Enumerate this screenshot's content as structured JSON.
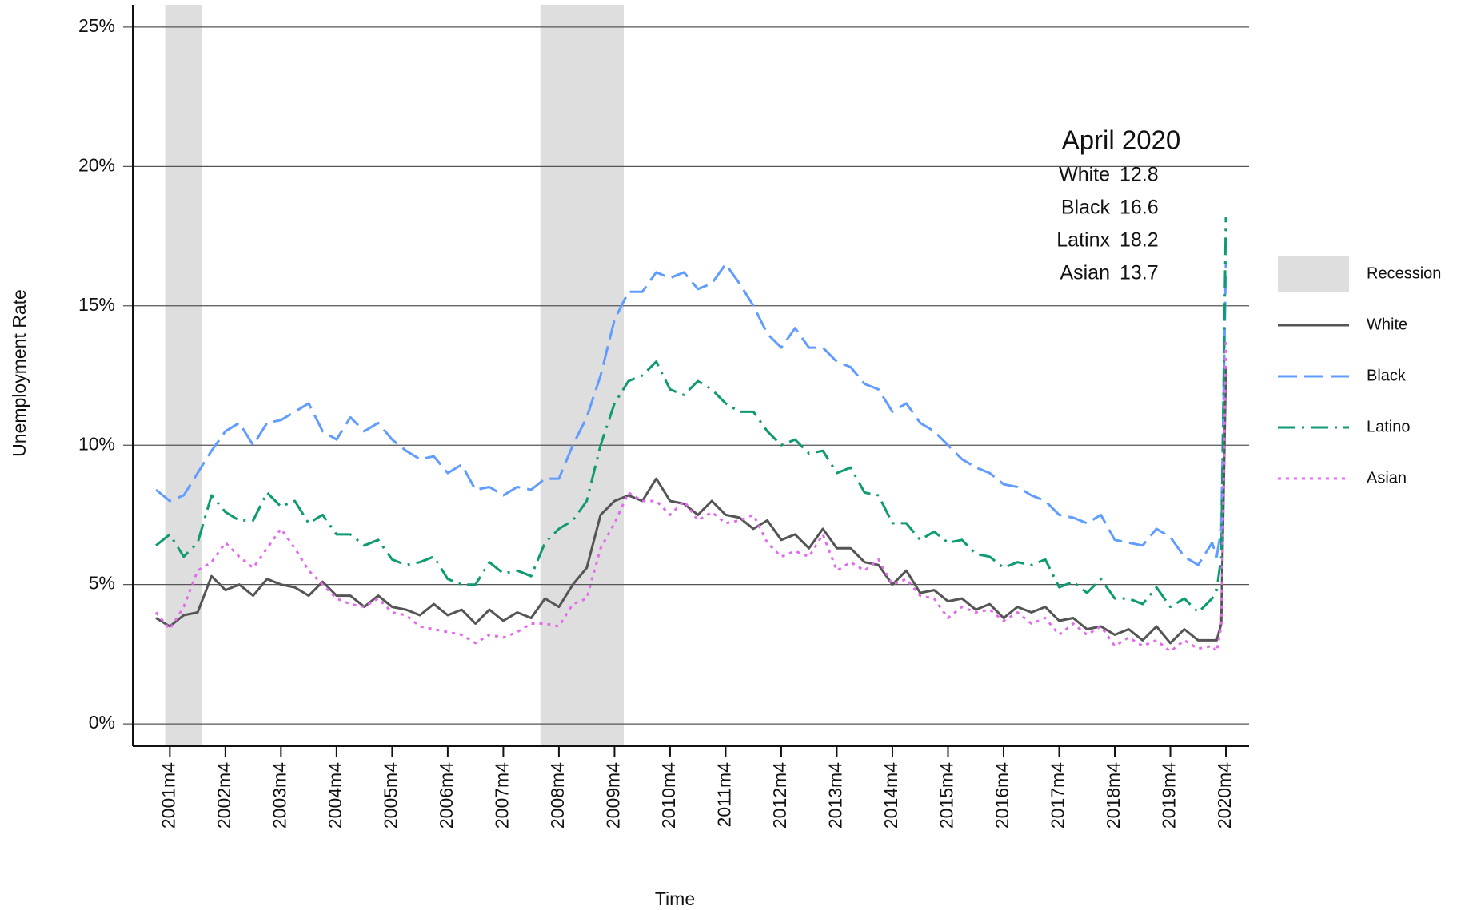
{
  "chart_data": {
    "type": "line",
    "y_label": "Unemployment Rate",
    "x_label": "Time",
    "x": [
      "2001m1",
      "2001m4",
      "2001m7",
      "2001m10",
      "2002m1",
      "2002m4",
      "2002m7",
      "2002m10",
      "2003m1",
      "2003m4",
      "2003m7",
      "2003m10",
      "2004m1",
      "2004m4",
      "2004m7",
      "2004m10",
      "2005m1",
      "2005m4",
      "2005m7",
      "2005m10",
      "2006m1",
      "2006m4",
      "2006m7",
      "2006m10",
      "2007m1",
      "2007m4",
      "2007m7",
      "2007m10",
      "2008m1",
      "2008m4",
      "2008m7",
      "2008m10",
      "2009m1",
      "2009m4",
      "2009m7",
      "2009m10",
      "2010m1",
      "2010m4",
      "2010m7",
      "2010m10",
      "2011m1",
      "2011m4",
      "2011m7",
      "2011m10",
      "2012m1",
      "2012m4",
      "2012m7",
      "2012m10",
      "2013m1",
      "2013m4",
      "2013m7",
      "2013m10",
      "2014m1",
      "2014m4",
      "2014m7",
      "2014m10",
      "2015m1",
      "2015m4",
      "2015m7",
      "2015m10",
      "2016m1",
      "2016m4",
      "2016m7",
      "2016m10",
      "2017m1",
      "2017m4",
      "2017m7",
      "2017m10",
      "2018m1",
      "2018m4",
      "2018m7",
      "2018m10",
      "2019m1",
      "2019m4",
      "2019m7",
      "2019m10",
      "2020m1",
      "2020m2",
      "2020m3",
      "2020m4"
    ],
    "series": [
      {
        "name": "White",
        "color": "#555555",
        "linestyle": "solid",
        "values": [
          3.8,
          3.5,
          3.9,
          4.0,
          5.3,
          4.8,
          5.0,
          4.6,
          5.2,
          5.0,
          4.9,
          4.6,
          5.1,
          4.6,
          4.6,
          4.2,
          4.6,
          4.2,
          4.1,
          3.9,
          4.3,
          3.9,
          4.1,
          3.6,
          4.1,
          3.7,
          4.0,
          3.8,
          4.5,
          4.2,
          5.0,
          5.6,
          7.5,
          8.0,
          8.2,
          8.0,
          8.8,
          8.0,
          7.9,
          7.5,
          8.0,
          7.5,
          7.4,
          7.0,
          7.3,
          6.6,
          6.8,
          6.3,
          7.0,
          6.3,
          6.3,
          5.8,
          5.7,
          5.0,
          5.5,
          4.7,
          4.8,
          4.4,
          4.5,
          4.1,
          4.3,
          3.8,
          4.2,
          4.0,
          4.2,
          3.7,
          3.8,
          3.4,
          3.5,
          3.2,
          3.4,
          3.0,
          3.5,
          2.9,
          3.4,
          3.0,
          3.0,
          3.0,
          3.6,
          12.8
        ]
      },
      {
        "name": "Black",
        "color": "#619cff",
        "linestyle": "dashed",
        "values": [
          8.4,
          8.0,
          8.2,
          9.0,
          9.8,
          10.5,
          10.8,
          10.0,
          10.8,
          10.9,
          11.2,
          11.5,
          10.5,
          10.2,
          11.0,
          10.5,
          10.8,
          10.2,
          9.8,
          9.5,
          9.6,
          9.0,
          9.3,
          8.4,
          8.5,
          8.2,
          8.5,
          8.4,
          8.8,
          8.8,
          10.0,
          11.0,
          12.5,
          14.5,
          15.5,
          15.5,
          16.2,
          16.0,
          16.2,
          15.6,
          15.8,
          16.5,
          15.8,
          15.0,
          14.0,
          13.5,
          14.2,
          13.5,
          13.5,
          13.0,
          12.8,
          12.2,
          12.0,
          11.2,
          11.5,
          10.8,
          10.5,
          10.0,
          9.5,
          9.2,
          9.0,
          8.6,
          8.5,
          8.2,
          8.0,
          7.5,
          7.4,
          7.2,
          7.5,
          6.6,
          6.5,
          6.4,
          7.0,
          6.7,
          6.0,
          5.7,
          6.5,
          6.0,
          7.0,
          16.6
        ]
      },
      {
        "name": "Latino",
        "color": "#0e9a72",
        "linestyle": "dotdash",
        "values": [
          6.4,
          6.8,
          6.0,
          6.5,
          8.2,
          7.6,
          7.3,
          7.3,
          8.3,
          7.8,
          8.0,
          7.2,
          7.5,
          6.8,
          6.8,
          6.4,
          6.6,
          5.9,
          5.7,
          5.8,
          6.0,
          5.2,
          5.0,
          5.0,
          5.8,
          5.4,
          5.5,
          5.3,
          6.5,
          7.0,
          7.3,
          8.0,
          10.0,
          11.5,
          12.3,
          12.5,
          13.0,
          12.0,
          11.8,
          12.3,
          12.0,
          11.5,
          11.2,
          11.2,
          10.5,
          10.0,
          10.2,
          9.7,
          9.8,
          9.0,
          9.2,
          8.3,
          8.2,
          7.2,
          7.2,
          6.6,
          6.9,
          6.5,
          6.6,
          6.1,
          6.0,
          5.6,
          5.8,
          5.7,
          5.9,
          4.9,
          5.1,
          4.7,
          5.2,
          4.5,
          4.5,
          4.3,
          4.9,
          4.2,
          4.5,
          4.0,
          4.5,
          4.8,
          6.0,
          18.2
        ]
      },
      {
        "name": "Asian",
        "color": "#e36cec",
        "linestyle": "dotted",
        "values": [
          4.0,
          3.4,
          4.2,
          5.5,
          5.8,
          6.5,
          6.0,
          5.6,
          6.3,
          7.0,
          6.3,
          5.5,
          5.0,
          4.5,
          4.3,
          4.2,
          4.5,
          4.0,
          3.9,
          3.5,
          3.4,
          3.3,
          3.2,
          2.9,
          3.2,
          3.1,
          3.3,
          3.6,
          3.6,
          3.5,
          4.3,
          4.5,
          6.3,
          7.2,
          8.3,
          8.0,
          8.0,
          7.5,
          8.0,
          7.3,
          7.6,
          7.2,
          7.3,
          7.5,
          6.5,
          6.0,
          6.2,
          6.0,
          6.8,
          5.5,
          5.8,
          5.5,
          5.9,
          5.0,
          5.2,
          4.6,
          4.5,
          3.8,
          4.2,
          4.0,
          4.1,
          3.7,
          4.0,
          3.6,
          3.8,
          3.2,
          3.6,
          3.2,
          3.5,
          2.8,
          3.1,
          2.8,
          3.0,
          2.6,
          3.0,
          2.7,
          2.8,
          2.6,
          3.5,
          13.7
        ]
      }
    ],
    "recession_label": "Recession",
    "recession_color": "#dedede",
    "recessions": [
      {
        "start": "2001m3",
        "end": "2001m11"
      },
      {
        "start": "2007m12",
        "end": "2009m6"
      }
    ],
    "xlim": [
      "2000m8",
      "2020m9"
    ],
    "xticks": [
      "2001m4",
      "2002m4",
      "2003m4",
      "2004m4",
      "2005m4",
      "2006m4",
      "2007m4",
      "2008m4",
      "2009m4",
      "2010m4",
      "2011m4",
      "2012m4",
      "2013m4",
      "2014m4",
      "2015m4",
      "2016m4",
      "2017m4",
      "2018m4",
      "2019m4",
      "2020m4"
    ],
    "ylim": [
      -0.8,
      25.8
    ],
    "yticks": [
      {
        "value": 0,
        "label": "0%"
      },
      {
        "value": 5,
        "label": "5%"
      },
      {
        "value": 10,
        "label": "10%"
      },
      {
        "value": 15,
        "label": "15%"
      },
      {
        "value": 20,
        "label": "20%"
      },
      {
        "value": 25,
        "label": "25%"
      }
    ],
    "grid": true,
    "annotation": {
      "title": "April 2020",
      "rows": [
        {
          "label": "White",
          "value": 12.8
        },
        {
          "label": "Black",
          "value": 16.6
        },
        {
          "label": "Latinx",
          "value": 18.2
        },
        {
          "label": "Asian",
          "value": 13.7
        }
      ]
    }
  }
}
